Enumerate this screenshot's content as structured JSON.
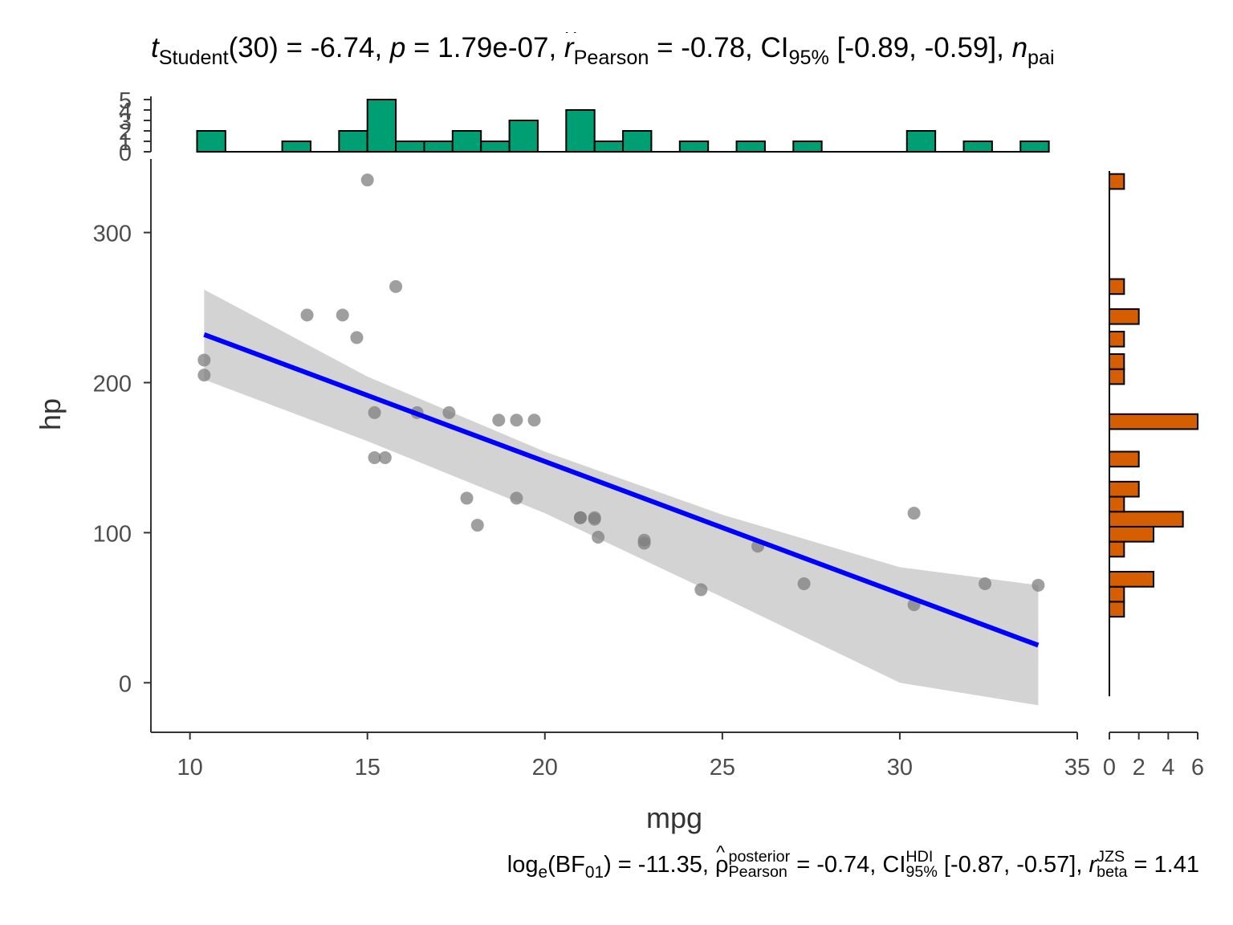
{
  "title_stats": {
    "t_symbol": "t",
    "t_sub": "Student",
    "t_text": "(30) = -6.74, ",
    "p_symbol": "p",
    "p_text": " = 1.79e-07, ",
    "r_symbol": "r",
    "r_sub": "Pearson",
    "r_text": " = -0.78, CI",
    "ci_sub": "95%",
    "ci_text": " [-0.89, -0.59], ",
    "n_symbol": "n",
    "n_sub": "pai"
  },
  "subtitle_stats": {
    "log_text": "log",
    "log_sub": "e",
    "bf_open": "(BF",
    "bf_sub": "01",
    "bf_text": ") = -11.35, ",
    "rho_symbol": "ρ",
    "rho_sup": "posterior",
    "rho_sub": "Pearson",
    "rho_text": " = -0.74, CI",
    "ci_sup": "HDI",
    "ci_sub": "95%",
    "ci_text": " [-0.87, -0.57], ",
    "r_symbol": "r",
    "r_sup": "JZS",
    "r_sub": "beta",
    "r_text": " = 1.41"
  },
  "chart_data": {
    "type": "scatter",
    "xlabel": "mpg",
    "ylabel": "hp",
    "xlim": [
      8.9,
      35.0
    ],
    "ylim": [
      -33,
      349
    ],
    "x_ticks": [
      "10",
      "15",
      "20",
      "25",
      "30",
      "35"
    ],
    "y_ticks": [
      "0",
      "100",
      "200",
      "300"
    ],
    "points": [
      [
        21.0,
        110
      ],
      [
        21.0,
        110
      ],
      [
        22.8,
        93
      ],
      [
        21.4,
        110
      ],
      [
        18.7,
        175
      ],
      [
        18.1,
        105
      ],
      [
        14.3,
        245
      ],
      [
        24.4,
        62
      ],
      [
        22.8,
        95
      ],
      [
        19.2,
        123
      ],
      [
        17.8,
        123
      ],
      [
        16.4,
        180
      ],
      [
        17.3,
        180
      ],
      [
        15.2,
        180
      ],
      [
        10.4,
        205
      ],
      [
        10.4,
        215
      ],
      [
        14.7,
        230
      ],
      [
        32.4,
        66
      ],
      [
        30.4,
        52
      ],
      [
        33.9,
        65
      ],
      [
        21.5,
        97
      ],
      [
        15.5,
        150
      ],
      [
        15.2,
        150
      ],
      [
        13.3,
        245
      ],
      [
        19.2,
        175
      ],
      [
        27.3,
        66
      ],
      [
        26.0,
        91
      ],
      [
        30.4,
        113
      ],
      [
        15.8,
        264
      ],
      [
        19.7,
        175
      ],
      [
        15.0,
        335
      ],
      [
        21.4,
        109
      ]
    ],
    "regression_line": {
      "x": [
        10.4,
        33.9
      ],
      "y": [
        232,
        25
      ]
    },
    "confidence_band": {
      "x": [
        10.4,
        15,
        20,
        25,
        30,
        33.9
      ],
      "lower": [
        202,
        161,
        113,
        57,
        0,
        -15
      ],
      "upper": [
        262,
        204,
        154,
        112,
        77,
        65
      ]
    },
    "x_histogram": {
      "axis_ticks": [
        "0",
        "1",
        "2",
        "3",
        "4",
        "5"
      ],
      "bins": [
        [
          10.2,
          11.0,
          2
        ],
        [
          11.0,
          12.6,
          0
        ],
        [
          12.6,
          13.4,
          1
        ],
        [
          13.4,
          14.2,
          0
        ],
        [
          14.2,
          15.0,
          2
        ],
        [
          15.0,
          15.8,
          5
        ],
        [
          15.8,
          16.6,
          1
        ],
        [
          16.6,
          17.4,
          1
        ],
        [
          17.4,
          18.2,
          2
        ],
        [
          18.2,
          19.0,
          1
        ],
        [
          19.0,
          19.8,
          3
        ],
        [
          19.8,
          20.6,
          0
        ],
        [
          20.6,
          21.4,
          4
        ],
        [
          21.4,
          22.2,
          1
        ],
        [
          22.2,
          23.0,
          2
        ],
        [
          23.0,
          23.8,
          0
        ],
        [
          23.8,
          24.6,
          1
        ],
        [
          24.6,
          25.4,
          0
        ],
        [
          25.4,
          26.2,
          1
        ],
        [
          26.2,
          27.0,
          0
        ],
        [
          27.0,
          27.8,
          1
        ],
        [
          27.8,
          30.2,
          0
        ],
        [
          30.2,
          31.0,
          2
        ],
        [
          31.0,
          31.8,
          0
        ],
        [
          31.8,
          32.6,
          1
        ],
        [
          32.6,
          33.4,
          0
        ],
        [
          33.4,
          34.2,
          1
        ]
      ]
    },
    "y_histogram": {
      "axis_ticks": [
        "0",
        "2",
        "4",
        "6"
      ],
      "xlim": [
        0,
        6
      ],
      "bins": [
        [
          44,
          54,
          1
        ],
        [
          54,
          64,
          1
        ],
        [
          64,
          74,
          3
        ],
        [
          84,
          94,
          1
        ],
        [
          94,
          104,
          3
        ],
        [
          104,
          114,
          5
        ],
        [
          114,
          124,
          1
        ],
        [
          124,
          134,
          2
        ],
        [
          144,
          154,
          2
        ],
        [
          169,
          179,
          6
        ],
        [
          199,
          209,
          1
        ],
        [
          209,
          219,
          1
        ],
        [
          224,
          234,
          1
        ],
        [
          239,
          249,
          2
        ],
        [
          259,
          269,
          1
        ],
        [
          329,
          339,
          1
        ]
      ]
    },
    "colors": {
      "points": "#7f7f7f",
      "regression_line": "#0000ff",
      "confidence_band": "#d3d3d3",
      "x_histogram_fill": "#009e73",
      "y_histogram_fill": "#d55e00",
      "axis": "#333333"
    }
  }
}
